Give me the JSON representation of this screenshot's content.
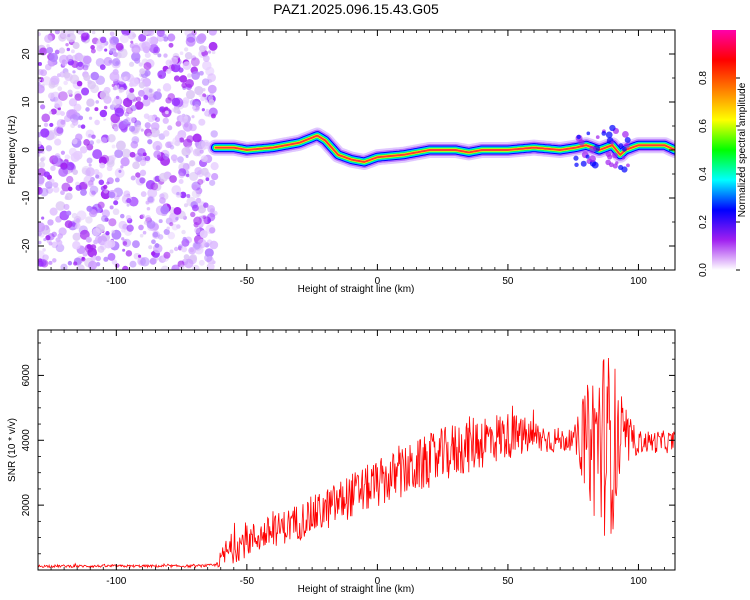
{
  "title": "PAZ1.2025.096.15.43.G05",
  "chart_data": [
    {
      "type": "heatmap",
      "name": "spectrogram",
      "xlabel": "Height of straight line (km)",
      "ylabel": "Frequency (Hz)",
      "xlim": [
        -130,
        114
      ],
      "ylim": [
        -25,
        25
      ],
      "x_ticks": [
        -100,
        -50,
        0,
        50,
        100
      ],
      "y_ticks": [
        -20,
        -10,
        0,
        10,
        20
      ],
      "colorbar": {
        "label": "Normalized spectral amplitude",
        "range": [
          0,
          1
        ],
        "ticks": [
          "0.0",
          "0.2",
          "0.4",
          "0.6",
          "0.8"
        ],
        "colors": [
          "#ffffff",
          "#a020f0",
          "#0000ff",
          "#00ffff",
          "#00ff00",
          "#ffff00",
          "#ff7f00",
          "#ff0000",
          "#ff00aa"
        ]
      },
      "noise_region_x": [
        -130,
        -62
      ],
      "ridge": {
        "x": [
          -62,
          -55,
          -50,
          -40,
          -30,
          -23,
          -20,
          -15,
          -10,
          -5,
          0,
          10,
          20,
          30,
          35,
          40,
          50,
          60,
          70,
          76,
          80,
          85,
          90,
          93,
          95,
          100,
          105,
          110,
          114
        ],
        "y": [
          0.5,
          0.5,
          0.0,
          0.5,
          1.5,
          3.0,
          2.0,
          -1.0,
          -2.0,
          -2.5,
          -1.5,
          -1.0,
          0.0,
          0.0,
          -0.5,
          0.0,
          0.0,
          0.5,
          0.0,
          0.5,
          1.0,
          0.0,
          1.0,
          -1.0,
          0.0,
          1.0,
          1.0,
          1.0,
          0.0
        ]
      }
    },
    {
      "type": "line",
      "name": "snr",
      "xlabel": "Height of straight line (km)",
      "ylabel": "SNR (10 * v/v)",
      "xlim": [
        -130,
        114
      ],
      "ylim": [
        0,
        7400
      ],
      "x_ticks": [
        -100,
        -50,
        0,
        50,
        100
      ],
      "y_ticks": [
        2000,
        4000,
        6000
      ],
      "color": "#ff0000",
      "trend": {
        "x": [
          -130,
          -100,
          -70,
          -62,
          -58,
          -55,
          -50,
          -40,
          -30,
          -20,
          -10,
          0,
          10,
          20,
          30,
          40,
          50,
          60,
          70,
          80,
          85,
          90,
          95,
          100,
          114
        ],
        "y": [
          120,
          120,
          120,
          150,
          500,
          700,
          900,
          1200,
          1500,
          1850,
          2300,
          2650,
          3000,
          3350,
          3700,
          4000,
          4150,
          4100,
          4000,
          4000,
          4000,
          3900,
          4000,
          3950,
          3950
        ]
      },
      "noise": {
        "x": [
          -130,
          -62,
          -58,
          -40,
          -20,
          0,
          20,
          40,
          60,
          75,
          80,
          85,
          90,
          95,
          100,
          114
        ],
        "y": [
          40,
          40,
          500,
          500,
          650,
          750,
          850,
          900,
          550,
          300,
          1600,
          3000,
          2800,
          900,
          350,
          350
        ]
      }
    }
  ]
}
